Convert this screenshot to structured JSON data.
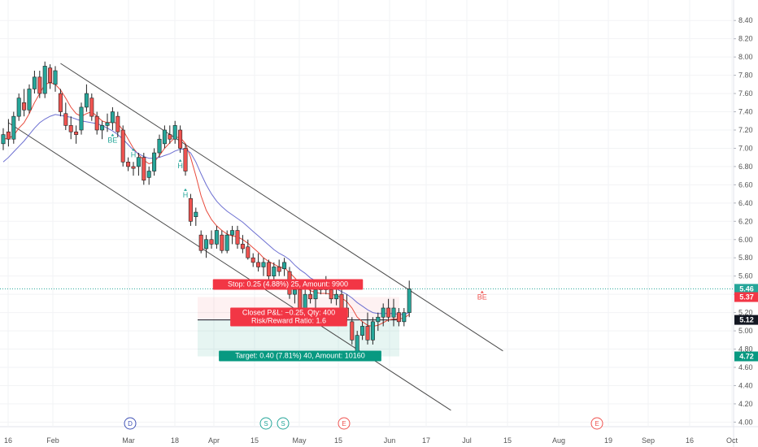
{
  "chart_data": {
    "type": "candlestick",
    "ylim": [
      3.95,
      8.58
    ],
    "y_ticks": [
      "4.00",
      "4.20",
      "4.40",
      "4.60",
      "4.80",
      "5.00",
      "5.20",
      "5.40",
      "5.60",
      "5.80",
      "6.00",
      "6.20",
      "6.40",
      "6.60",
      "6.80",
      "7.00",
      "7.20",
      "7.40",
      "7.60",
      "7.80",
      "8.00",
      "8.20",
      "8.40"
    ],
    "x_ticks": [
      "16",
      "Feb",
      "Mar",
      "18",
      "Apr",
      "15",
      "May",
      "15",
      "Jun",
      "17",
      "Jul",
      "15",
      "Aug",
      "19",
      "Sep",
      "16",
      "Oct"
    ],
    "candles": [
      [
        7.05,
        7.22,
        6.98,
        7.15
      ],
      [
        7.18,
        7.32,
        7.02,
        7.1
      ],
      [
        7.1,
        7.4,
        7.05,
        7.35
      ],
      [
        7.35,
        7.6,
        7.3,
        7.55
      ],
      [
        7.5,
        7.65,
        7.35,
        7.42
      ],
      [
        7.42,
        7.7,
        7.38,
        7.65
      ],
      [
        7.65,
        7.85,
        7.6,
        7.78
      ],
      [
        7.78,
        7.85,
        7.55,
        7.6
      ],
      [
        7.6,
        7.95,
        7.55,
        7.9
      ],
      [
        7.88,
        7.92,
        7.65,
        7.72
      ],
      [
        7.7,
        7.9,
        7.62,
        7.85
      ],
      [
        7.6,
        7.65,
        7.35,
        7.4
      ],
      [
        7.38,
        7.5,
        7.2,
        7.25
      ],
      [
        7.25,
        7.35,
        7.1,
        7.18
      ],
      [
        7.18,
        7.25,
        7.05,
        7.15
      ],
      [
        7.2,
        7.5,
        7.15,
        7.45
      ],
      [
        7.45,
        7.7,
        7.4,
        7.6
      ],
      [
        7.55,
        7.6,
        7.3,
        7.35
      ],
      [
        7.35,
        7.4,
        7.15,
        7.2
      ],
      [
        7.2,
        7.3,
        7.1,
        7.25
      ],
      [
        7.25,
        7.38,
        7.18,
        7.28
      ],
      [
        7.28,
        7.45,
        7.2,
        7.4
      ],
      [
        7.35,
        7.4,
        7.12,
        7.18
      ],
      [
        7.2,
        7.25,
        6.8,
        6.85
      ],
      [
        6.85,
        6.9,
        6.75,
        6.8
      ],
      [
        6.8,
        6.85,
        6.7,
        6.78
      ],
      [
        6.8,
        6.95,
        6.7,
        6.9
      ],
      [
        6.9,
        6.95,
        6.6,
        6.65
      ],
      [
        6.68,
        6.8,
        6.6,
        6.75
      ],
      [
        6.75,
        7.0,
        6.7,
        6.95
      ],
      [
        6.95,
        7.15,
        6.9,
        7.1
      ],
      [
        7.05,
        7.25,
        7.0,
        7.2
      ],
      [
        7.15,
        7.25,
        7.05,
        7.1
      ],
      [
        7.1,
        7.3,
        7.05,
        7.25
      ],
      [
        7.2,
        7.25,
        6.95,
        7.0
      ],
      [
        7.0,
        7.05,
        6.7,
        6.75
      ],
      [
        6.45,
        6.5,
        6.15,
        6.2
      ],
      [
        6.25,
        6.35,
        6.15,
        6.3
      ],
      [
        6.05,
        6.1,
        5.85,
        5.88
      ],
      [
        5.9,
        6.05,
        5.8,
        6.0
      ],
      [
        6.0,
        6.1,
        5.9,
        5.95
      ],
      [
        5.95,
        6.15,
        5.9,
        6.1
      ],
      [
        6.05,
        6.1,
        5.85,
        5.88
      ],
      [
        5.88,
        6.1,
        5.85,
        6.05
      ],
      [
        6.05,
        6.15,
        5.95,
        6.1
      ],
      [
        6.1,
        6.15,
        5.9,
        5.95
      ],
      [
        5.95,
        6.05,
        5.85,
        5.9
      ],
      [
        5.92,
        6.0,
        5.78,
        5.8
      ],
      [
        5.8,
        5.85,
        5.7,
        5.75
      ],
      [
        5.75,
        5.85,
        5.65,
        5.7
      ],
      [
        5.7,
        5.8,
        5.6,
        5.75
      ],
      [
        5.75,
        5.78,
        5.55,
        5.6
      ],
      [
        5.6,
        5.75,
        5.55,
        5.7
      ],
      [
        5.7,
        5.78,
        5.6,
        5.65
      ],
      [
        5.68,
        5.8,
        5.6,
        5.75
      ],
      [
        5.65,
        5.7,
        5.35,
        5.4
      ],
      [
        5.4,
        5.5,
        5.3,
        5.45
      ],
      [
        5.45,
        5.55,
        5.2,
        5.25
      ],
      [
        5.25,
        5.45,
        5.2,
        5.4
      ],
      [
        5.4,
        5.55,
        5.3,
        5.35
      ],
      [
        5.35,
        5.5,
        5.25,
        5.45
      ],
      [
        5.45,
        5.55,
        5.4,
        5.5
      ],
      [
        5.5,
        5.6,
        5.4,
        5.45
      ],
      [
        5.45,
        5.55,
        5.3,
        5.35
      ],
      [
        5.35,
        5.5,
        5.28,
        5.4
      ],
      [
        5.4,
        5.5,
        5.2,
        5.25
      ],
      [
        5.25,
        5.4,
        5.1,
        5.15
      ],
      [
        5.1,
        5.15,
        4.85,
        4.9
      ],
      [
        4.75,
        5.0,
        4.7,
        4.95
      ],
      [
        4.95,
        5.1,
        4.9,
        5.05
      ],
      [
        5.05,
        5.2,
        4.85,
        4.9
      ],
      [
        4.9,
        5.15,
        4.85,
        5.1
      ],
      [
        5.1,
        5.2,
        5.0,
        5.15
      ],
      [
        5.15,
        5.3,
        5.05,
        5.25
      ],
      [
        5.25,
        5.35,
        5.1,
        5.15
      ],
      [
        5.15,
        5.35,
        5.05,
        5.25
      ],
      [
        5.2,
        5.25,
        5.05,
        5.1
      ],
      [
        5.1,
        5.25,
        5.05,
        5.2
      ],
      [
        5.2,
        5.55,
        5.15,
        5.46
      ]
    ],
    "series": [
      {
        "color": "#e84a3c",
        "values": [
          7.1,
          7.11,
          7.14,
          7.22,
          7.28,
          7.38,
          7.5,
          7.6,
          7.7,
          7.72,
          7.7,
          7.64,
          7.55,
          7.45,
          7.38,
          7.35,
          7.38,
          7.4,
          7.35,
          7.3,
          7.28,
          7.29,
          7.27,
          7.2,
          7.1,
          7.0,
          6.93,
          6.87,
          6.83,
          6.85,
          6.92,
          7.0,
          7.06,
          7.12,
          7.12,
          7.05,
          6.9,
          6.7,
          6.48,
          6.32,
          6.22,
          6.15,
          6.1,
          6.06,
          6.04,
          6.03,
          6.0,
          5.96,
          5.91,
          5.86,
          5.8,
          5.76,
          5.73,
          5.7,
          5.69,
          5.64,
          5.58,
          5.52,
          5.48,
          5.44,
          5.42,
          5.41,
          5.41,
          5.4,
          5.39,
          5.36,
          5.32,
          5.25,
          5.15,
          5.1,
          5.06,
          5.05,
          5.06,
          5.09,
          5.12,
          5.13,
          5.13,
          5.14,
          5.18
        ]
      },
      {
        "color": "#6c6fd1",
        "values": [
          6.85,
          6.9,
          6.96,
          7.02,
          7.08,
          7.15,
          7.22,
          7.28,
          7.32,
          7.35,
          7.37,
          7.36,
          7.35,
          7.34,
          7.32,
          7.3,
          7.29,
          7.28,
          7.27,
          7.25,
          7.22,
          7.19,
          7.15,
          7.1,
          7.04,
          6.98,
          6.94,
          6.91,
          6.89,
          6.89,
          6.9,
          6.92,
          6.94,
          6.97,
          6.99,
          6.99,
          6.95,
          6.85,
          6.72,
          6.6,
          6.5,
          6.42,
          6.36,
          6.31,
          6.27,
          6.23,
          6.19,
          6.14,
          6.09,
          6.04,
          5.99,
          5.94,
          5.89,
          5.85,
          5.82,
          5.78,
          5.72,
          5.67,
          5.63,
          5.58,
          5.55,
          5.52,
          5.5,
          5.48,
          5.46,
          5.43,
          5.4,
          5.36,
          5.31,
          5.27,
          5.23,
          5.2,
          5.19,
          5.19,
          5.19,
          5.19,
          5.18,
          5.18,
          5.2
        ]
      }
    ],
    "channel_lines": [
      {
        "from": [
          11,
          7.93
        ],
        "to": [
          96,
          4.78
        ]
      },
      {
        "from": [
          1,
          7.28
        ],
        "to": [
          86,
          4.13
        ]
      }
    ],
    "hline": 5.12,
    "stop_zone": [
      5.12,
      5.37
    ],
    "target_zone": [
      4.72,
      5.12
    ],
    "price_tags": [
      {
        "value": 5.46,
        "label": "5.46",
        "color": "#26a69a"
      },
      {
        "value": 5.37,
        "label": "5.37",
        "color": "#f23645"
      },
      {
        "value": 5.12,
        "label": "5.12",
        "color": "#131722"
      },
      {
        "value": 4.72,
        "label": "4.72",
        "color": "#089981"
      }
    ],
    "last_price": 5.46,
    "labels": {
      "stop": "Stop: 0.25 (4.88%) 25, Amount: 9900",
      "closed_line1": "Closed P&L: −0.25, Qty: 400",
      "closed_line2": "Risk/Reward Ratio: 1.6",
      "target": "Target: 0.40 (7.81%) 40, Amount: 10160"
    },
    "signals": [
      {
        "text": "BE",
        "color": "#26a69a",
        "x": 21,
        "y": 7.08
      },
      {
        "text": "H",
        "color": "#26a69a",
        "x": 25,
        "y": 6.92
      },
      {
        "text": "H",
        "color": "#26a69a",
        "x": 34,
        "y": 6.8
      },
      {
        "text": "H",
        "color": "#26a69a",
        "x": 35,
        "y": 6.48
      },
      {
        "text": "BE",
        "color": "#ef5350",
        "x": 92,
        "y": 5.36
      }
    ],
    "events": [
      {
        "text": "D",
        "color": "#3f51b5"
      },
      {
        "text": "S",
        "color": "#26a69a"
      },
      {
        "text": "S",
        "color": "#26a69a"
      },
      {
        "text": "E",
        "color": "#ef5350"
      },
      {
        "text": "E",
        "color": "#ef5350"
      }
    ]
  }
}
